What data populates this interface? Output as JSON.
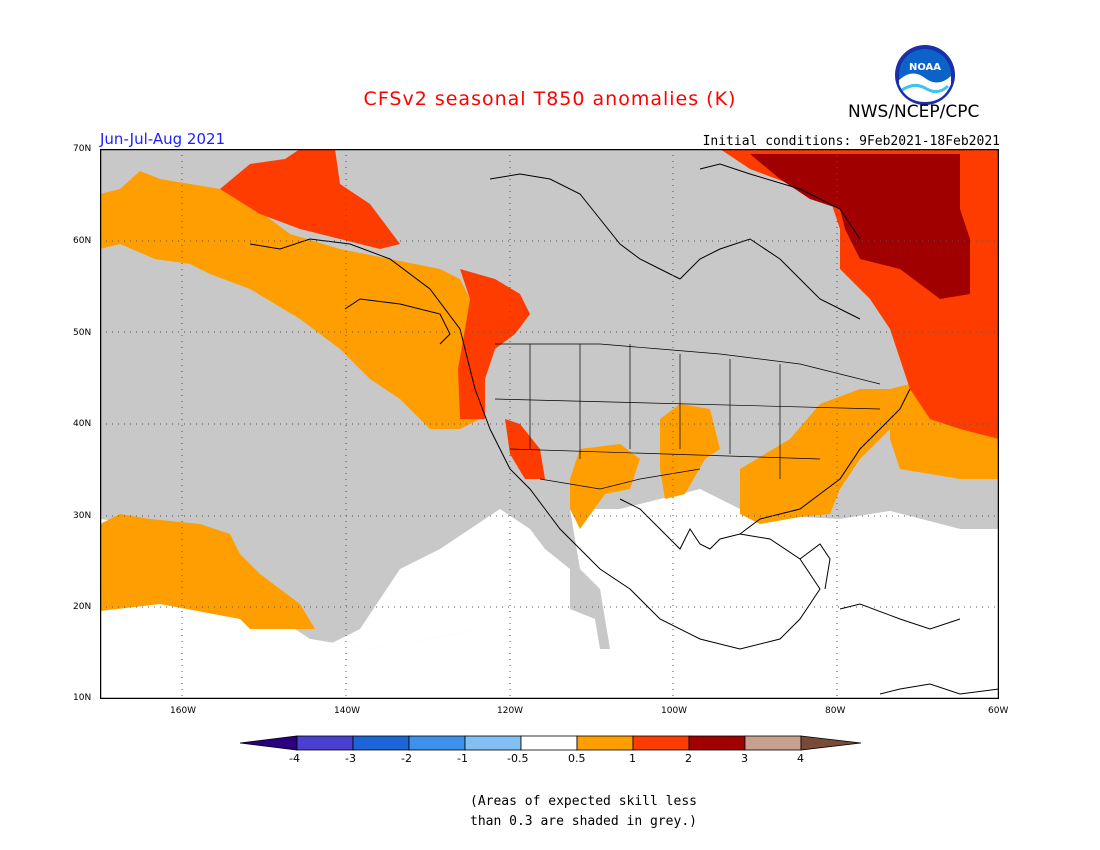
{
  "header": {
    "title": "CFSv2 seasonal T850 anomalies (K)",
    "organization": "NWS/NCEP/CPC",
    "season": "Jun-Jul-Aug 2021",
    "initial_conditions": "Initial conditions: 9Feb2021-18Feb2021",
    "logo_text": "NOAA"
  },
  "map": {
    "lat_labels": [
      "70N",
      "60N",
      "50N",
      "40N",
      "30N",
      "20N",
      "10N"
    ],
    "lon_labels": [
      "160W",
      "140W",
      "120W",
      "100W",
      "80W",
      "60W"
    ],
    "lat_range": [
      10,
      70
    ],
    "lon_range": [
      -171,
      -60
    ],
    "grid": "dotted"
  },
  "colorbar": {
    "ticks": [
      "-4",
      "-3",
      "-2",
      "-1",
      "-0.5",
      "0.5",
      "1",
      "2",
      "3",
      "4"
    ],
    "colors": {
      "lt_-4": "#2b0080",
      "-4_-3": "#4a3fd1",
      "-3_-2": "#1c64d8",
      "-2_-1": "#3d91ec",
      "-1_-0.5": "#82bff2",
      "-0.5_0.5": "#ffffff",
      "0.5_1": "#ff9e00",
      "1_2": "#ff3c00",
      "2_3": "#a00000",
      "3_4": "#c8a090",
      "gt_4": "#7a4a38"
    },
    "low_skill_color": "#c8c8c8"
  },
  "note": {
    "line1": "(Areas of expected skill less",
    "line2": "than 0.3 are shaded in grey.)"
  }
}
